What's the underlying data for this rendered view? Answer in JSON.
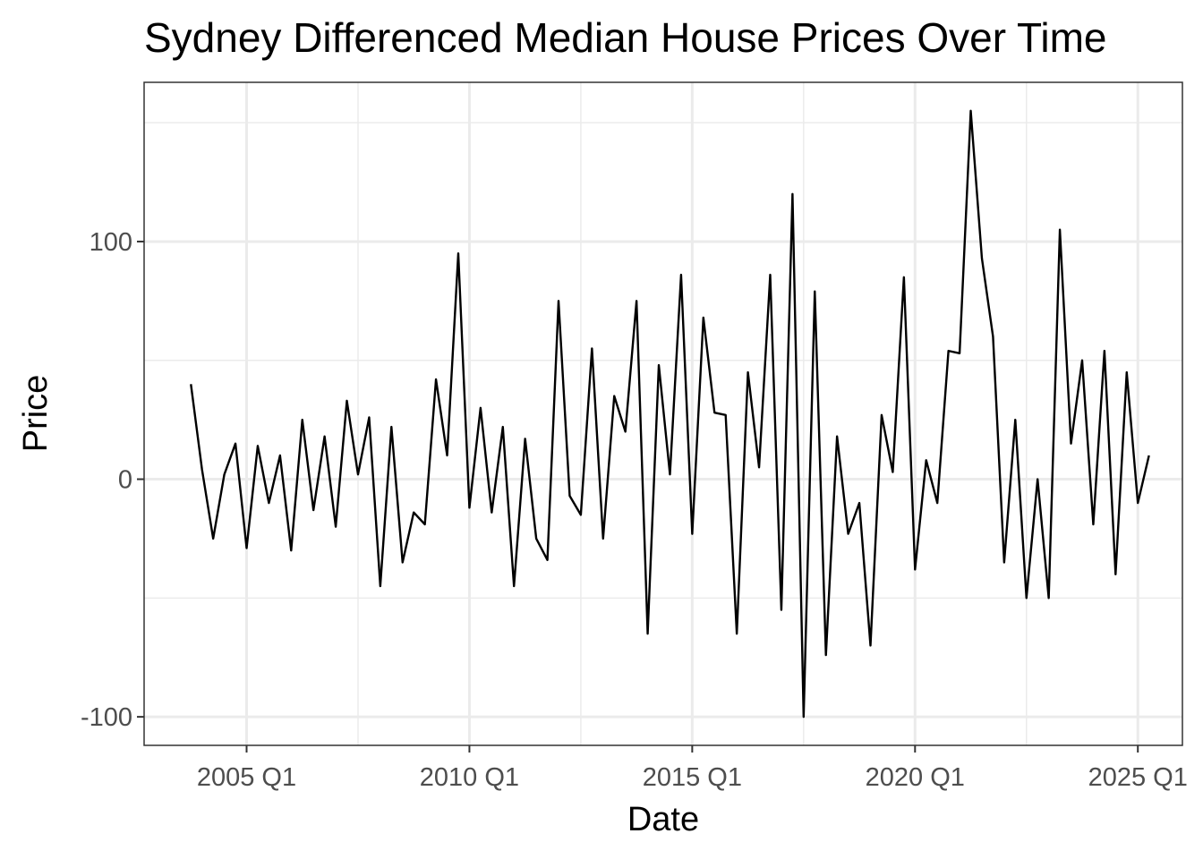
{
  "chart_data": {
    "type": "line",
    "title": "Sydney Differenced Median House Prices Over Time",
    "xlabel": "Date",
    "ylabel": "Price",
    "x_ticks": [
      {
        "label": "2005 Q1",
        "x": 2005.0
      },
      {
        "label": "2010 Q1",
        "x": 2010.0
      },
      {
        "label": "2015 Q1",
        "x": 2015.0
      },
      {
        "label": "2020 Q1",
        "x": 2020.0
      },
      {
        "label": "2025 Q1",
        "x": 2025.0
      }
    ],
    "y_ticks": [
      {
        "label": "-100",
        "y": -100
      },
      {
        "label": "0",
        "y": 0
      },
      {
        "label": "100",
        "y": 100
      }
    ],
    "xlim": [
      2002.7,
      2026.0
    ],
    "ylim": [
      -112,
      167
    ],
    "grid": true,
    "series": [
      {
        "color": "#000000",
        "x_start": 2003.75,
        "x_step": 0.25,
        "values": [
          40,
          4,
          -25,
          2,
          15,
          -29,
          14,
          -10,
          10,
          -30,
          25,
          -13,
          18,
          -20,
          33,
          2,
          26,
          -45,
          22,
          -35,
          -14,
          -19,
          42,
          10,
          95,
          -12,
          30,
          -14,
          22,
          -45,
          17,
          -25,
          -34,
          75,
          -7,
          -15,
          55,
          -25,
          35,
          20,
          75,
          -65,
          48,
          2,
          86,
          -23,
          68,
          28,
          27,
          -65,
          45,
          5,
          86,
          -55,
          120,
          -100,
          79,
          -74,
          18,
          -23,
          -10,
          -70,
          27,
          3,
          85,
          -38,
          8,
          -10,
          54,
          53,
          155,
          93,
          60,
          -35,
          25,
          -50,
          0,
          -50,
          105,
          15,
          50,
          -19,
          54,
          -40,
          45,
          -10,
          10
        ]
      }
    ]
  }
}
